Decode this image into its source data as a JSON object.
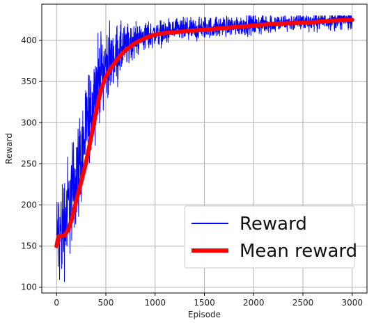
{
  "chart_data": {
    "type": "line",
    "title": "",
    "xlabel": "Episode",
    "ylabel": "Reward",
    "xlim": [
      -150,
      3150
    ],
    "ylim": [
      93,
      444
    ],
    "xticks": [
      0,
      500,
      1000,
      1500,
      2000,
      2500,
      3000
    ],
    "yticks": [
      100,
      150,
      200,
      250,
      300,
      350,
      400
    ],
    "grid": true,
    "legend_position": "bottom-right",
    "series": [
      {
        "name": "Reward",
        "color": "#0000ff",
        "x": [
          0,
          50,
          100,
          150,
          200,
          250,
          300,
          350,
          400,
          450,
          500,
          550,
          600,
          650,
          700,
          750,
          800,
          900,
          1000,
          1100,
          1200,
          1300,
          1400,
          1500,
          1600,
          1700,
          1800,
          1900,
          2000,
          2100,
          2200,
          2300,
          2400,
          2500,
          2600,
          2700,
          2800,
          2900,
          3000
        ],
        "values": [
          160,
          168,
          190,
          210,
          235,
          260,
          290,
          320,
          345,
          362,
          370,
          375,
          383,
          388,
          392,
          397,
          402,
          405,
          408,
          410,
          412,
          413,
          414,
          415,
          416,
          417,
          418,
          419,
          419,
          420,
          421,
          421,
          422,
          423,
          423,
          424,
          424,
          425,
          425
        ],
        "noise_amplitude": [
          32,
          38,
          38,
          36,
          36,
          35,
          33,
          31,
          30,
          28,
          24,
          22,
          20,
          18,
          16,
          14,
          12,
          10,
          9,
          9,
          8,
          8,
          8,
          8,
          7,
          7,
          7,
          7,
          7,
          7,
          6,
          6,
          6,
          6,
          6,
          6,
          6,
          6,
          6
        ]
      },
      {
        "name": "Mean reward",
        "color": "#ff0000",
        "x": [
          0,
          20,
          50,
          80,
          120,
          160,
          200,
          250,
          300,
          350,
          400,
          450,
          500,
          550,
          600,
          650,
          700,
          800,
          900,
          1000,
          1100,
          1200,
          1300,
          1400,
          1500,
          1600,
          1700,
          1800,
          1900,
          2000,
          2200,
          2400,
          2600,
          2800,
          3000
        ],
        "values": [
          150,
          162,
          162,
          163,
          170,
          185,
          205,
          228,
          252,
          282,
          312,
          340,
          356,
          366,
          374,
          382,
          388,
          397,
          403,
          407,
          409,
          410,
          411,
          412,
          413,
          414,
          415,
          416,
          417,
          418,
          420,
          421,
          422,
          424,
          425
        ]
      }
    ]
  }
}
